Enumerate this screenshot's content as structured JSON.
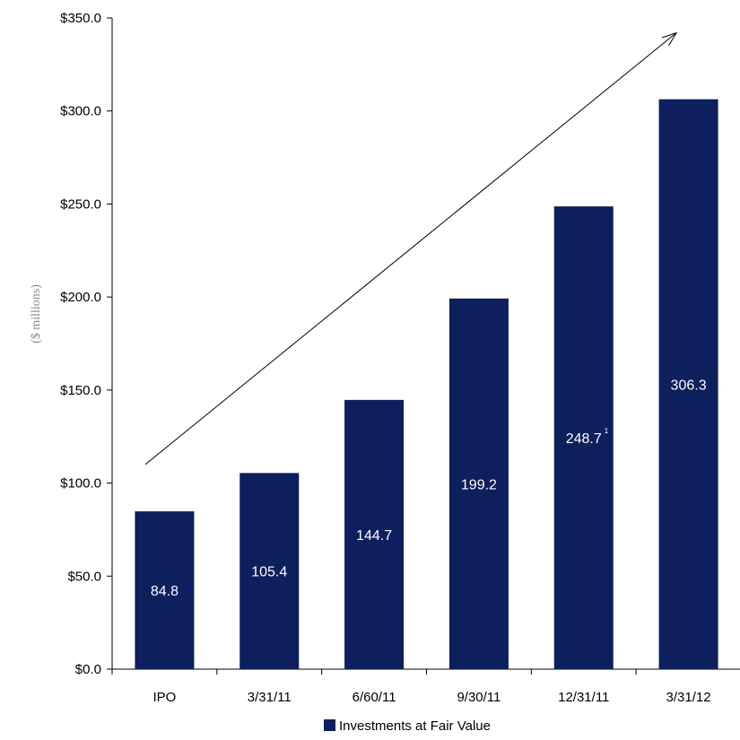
{
  "chart_data": {
    "type": "bar",
    "categories": [
      "IPO",
      "3/31/11",
      "6/60/11",
      "9/30/11",
      "12/31/11",
      "3/31/12"
    ],
    "series": [
      {
        "name": "Investments at Fair Value",
        "values": [
          84.8,
          105.4,
          144.7,
          199.2,
          248.7,
          306.3
        ],
        "labels": [
          "84.8",
          "105.4",
          "144.7",
          "199.2",
          "248.7",
          "306.3"
        ],
        "footnotes": [
          "",
          "",
          "",
          "",
          "1",
          ""
        ],
        "color": "#0d1f5c"
      }
    ],
    "ylabel": "($ millions)",
    "ylim": [
      0,
      350
    ],
    "yticks": [
      0,
      50,
      100,
      150,
      200,
      250,
      300,
      350
    ],
    "ytick_labels": [
      "$0.0",
      "$50.0",
      "$100.0",
      "$150.0",
      "$200.0",
      "$250.0",
      "$300.0",
      "$350.0"
    ],
    "grid": false,
    "legend_position": "bottom-center",
    "trend_arrow": {
      "from_value": 110,
      "to_value": 342,
      "direction": "up-right"
    }
  }
}
